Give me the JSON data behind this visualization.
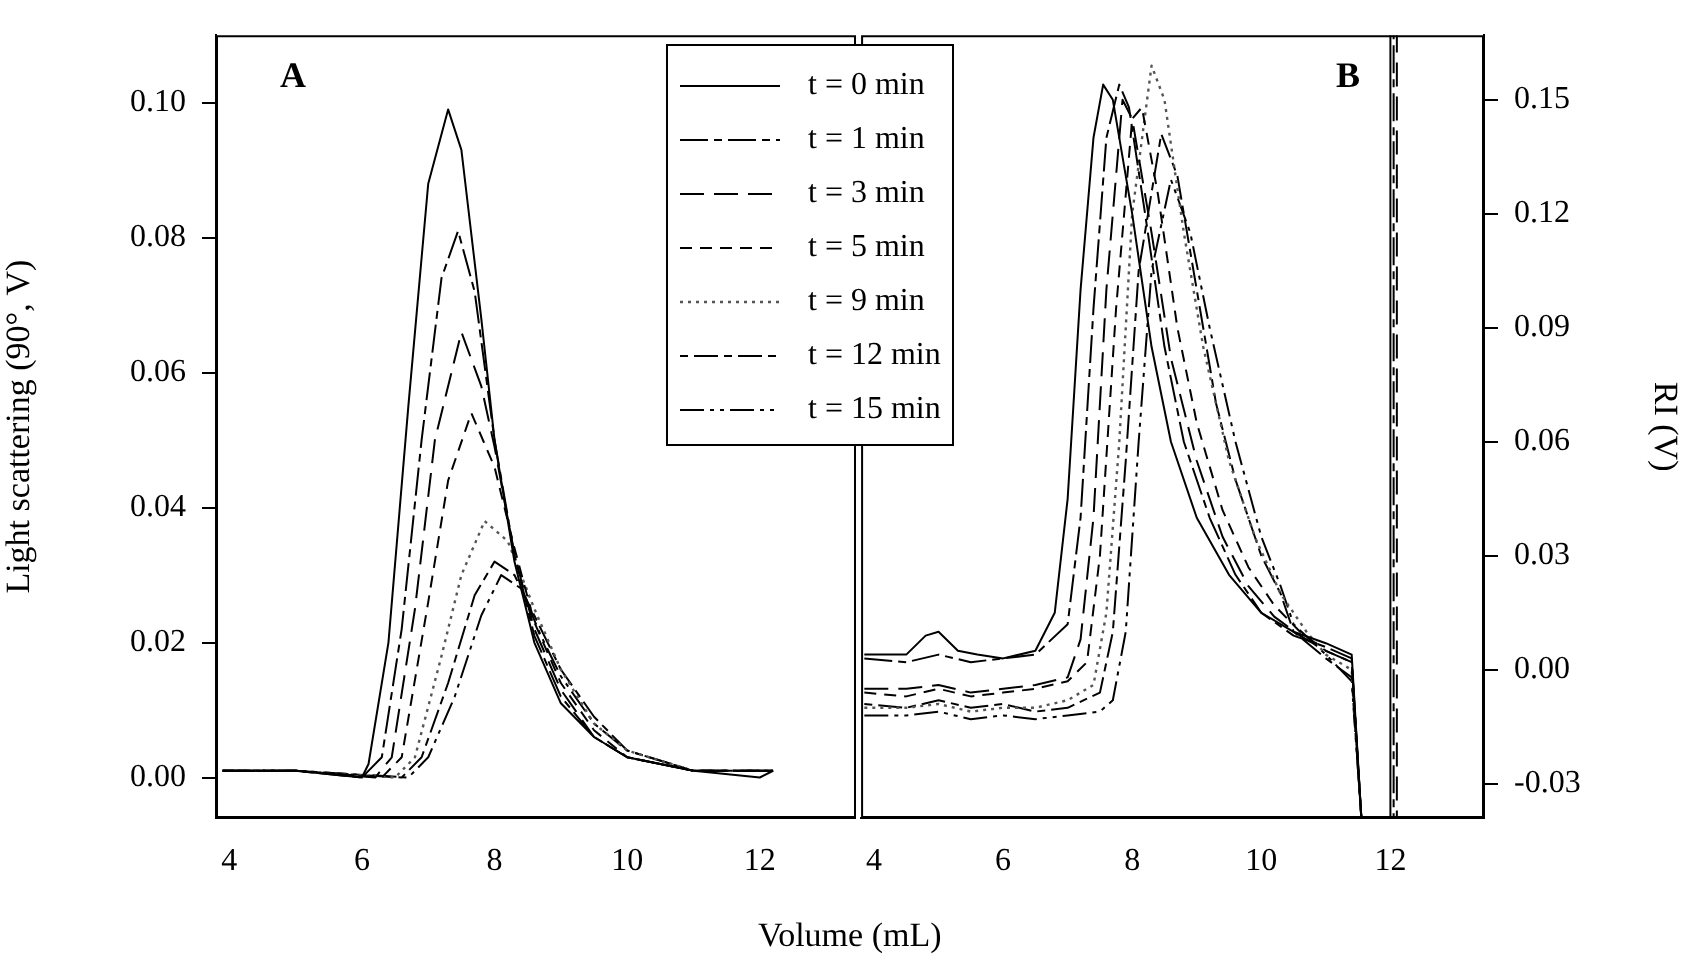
{
  "chart_data": [
    {
      "type": "line",
      "ylabel": "Light scattering (90°, V)",
      "xlabel": "Volume (mL)",
      "annotations": [
        "A"
      ],
      "legend": "top right",
      "xlim": [
        3.8,
        13.45
      ],
      "xticks": [
        4,
        6,
        8,
        10,
        12
      ],
      "ylim": [
        -0.006,
        0.11
      ],
      "yticks": [
        {
          "value": 0,
          "label": "0.00"
        },
        {
          "value": 0.02,
          "label": "0.02"
        },
        {
          "value": 0.04,
          "label": "0.04"
        },
        {
          "value": 0.06,
          "label": "0.06"
        },
        {
          "value": 0.08,
          "label": "0.08"
        },
        {
          "value": 0.1,
          "label": "0.10"
        }
      ],
      "series": [
        {
          "name": "t = 0 min",
          "color": "#000000",
          "line_style": "solid",
          "x": [
            3.9,
            5,
            6,
            6.1,
            6.4,
            6.7,
            7.0,
            7.3,
            7.5,
            7.8,
            8.0,
            8.3,
            8.6,
            9.0,
            9.5,
            10,
            11,
            12,
            12.2
          ],
          "values": [
            0.001,
            0.001,
            0.0,
            0.002,
            0.02,
            0.055,
            0.088,
            0.099,
            0.093,
            0.068,
            0.05,
            0.032,
            0.02,
            0.011,
            0.006,
            0.003,
            0.001,
            0.0,
            0.001
          ]
        },
        {
          "name": "t = 1 min",
          "color": "#000000",
          "line_style": "dashed",
          "x": [
            3.9,
            5,
            6,
            6.3,
            6.6,
            6.9,
            7.2,
            7.45,
            7.7,
            8.0,
            8.3,
            8.6,
            9.0,
            9.5,
            10,
            11,
            12.2
          ],
          "values": [
            0.001,
            0.001,
            0.0,
            0.003,
            0.022,
            0.05,
            0.074,
            0.081,
            0.072,
            0.05,
            0.033,
            0.021,
            0.012,
            0.006,
            0.003,
            0.001,
            0.001
          ]
        },
        {
          "name": "t = 3 min",
          "color": "#000000",
          "line_style": "dashed",
          "x": [
            3.9,
            5,
            6.2,
            6.45,
            6.8,
            7.1,
            7.5,
            7.8,
            8.0,
            8.3,
            8.6,
            9.0,
            9.5,
            10,
            11,
            12.2
          ],
          "values": [
            0.001,
            0.001,
            0.0,
            0.003,
            0.025,
            0.05,
            0.066,
            0.058,
            0.049,
            0.033,
            0.022,
            0.013,
            0.006,
            0.003,
            0.001,
            0.001
          ]
        },
        {
          "name": "t = 5 min",
          "color": "#000000",
          "line_style": "dashed",
          "x": [
            3.9,
            5,
            6.3,
            6.6,
            7.0,
            7.3,
            7.65,
            8.0,
            8.3,
            8.6,
            9.0,
            9.5,
            10,
            11,
            12.2
          ],
          "values": [
            0.001,
            0.001,
            0.0,
            0.003,
            0.026,
            0.044,
            0.054,
            0.046,
            0.034,
            0.023,
            0.014,
            0.007,
            0.003,
            0.001,
            0.001
          ]
        },
        {
          "name": "t = 9 min",
          "color": "#555555",
          "line_style": "dotted",
          "x": [
            3.9,
            5,
            6.5,
            6.8,
            7.2,
            7.5,
            7.85,
            8.2,
            8.6,
            9.0,
            9.5,
            10,
            11,
            12.2
          ],
          "values": [
            0.001,
            0.001,
            0.0,
            0.003,
            0.018,
            0.03,
            0.038,
            0.035,
            0.025,
            0.016,
            0.008,
            0.004,
            0.001,
            0.001
          ]
        },
        {
          "name": "t = 12 min",
          "color": "#000000",
          "line_style": "dashed",
          "x": [
            3.9,
            5,
            6.6,
            6.9,
            7.3,
            7.7,
            8.0,
            8.3,
            8.6,
            9.0,
            9.5,
            10,
            11,
            12.2
          ],
          "values": [
            0.001,
            0.001,
            0.0,
            0.003,
            0.014,
            0.027,
            0.032,
            0.03,
            0.024,
            0.016,
            0.009,
            0.004,
            0.001,
            0.001
          ]
        },
        {
          "name": "t = 15 min",
          "color": "#000000",
          "line_style": "dashed",
          "x": [
            3.9,
            5,
            6.7,
            7.0,
            7.4,
            7.8,
            8.1,
            8.4,
            8.7,
            9.0,
            9.5,
            10,
            11,
            12.2
          ],
          "values": [
            0.001,
            0.001,
            0.0,
            0.003,
            0.012,
            0.024,
            0.03,
            0.028,
            0.021,
            0.015,
            0.008,
            0.004,
            0.001,
            0.001
          ]
        }
      ]
    },
    {
      "type": "line",
      "y2label": "RI (V)",
      "annotations": [
        "B"
      ],
      "xlim": [
        3.8,
        13.45
      ],
      "xticks": [
        4,
        6,
        8,
        10,
        12
      ],
      "y2lim": [
        -0.039,
        0.167
      ],
      "y2ticks": [
        {
          "value": -0.03,
          "label": "-0.03"
        },
        {
          "value": 0,
          "label": "0.00"
        },
        {
          "value": 0.03,
          "label": "0.03"
        },
        {
          "value": 0.06,
          "label": "0.06"
        },
        {
          "value": 0.09,
          "label": "0.09"
        },
        {
          "value": 0.12,
          "label": "0.12"
        },
        {
          "value": 0.15,
          "label": "0.15"
        }
      ],
      "series": [
        {
          "color": "#000000",
          "axis": "y2",
          "line_style": "solid",
          "x": [
            3.85,
            4.5,
            4.8,
            5.0,
            5.3,
            5.6,
            6.0,
            6.5,
            6.8,
            7.0,
            7.2,
            7.4,
            7.55,
            7.7,
            8.0,
            8.3,
            8.6,
            9.0,
            9.5,
            10.0,
            10.5,
            11.0,
            11.4,
            11.55,
            12.0,
            12.0
          ],
          "values": [
            0.004,
            0.004,
            0.009,
            0.01,
            0.005,
            0.004,
            0.003,
            0.005,
            0.015,
            0.045,
            0.1,
            0.14,
            0.154,
            0.15,
            0.12,
            0.085,
            0.06,
            0.04,
            0.025,
            0.015,
            0.01,
            0.007,
            0.004,
            -0.039,
            -0.039,
            0.167
          ]
        },
        {
          "color": "#000000",
          "axis": "y2",
          "line_style": "dashed",
          "x": [
            3.85,
            4.5,
            5.0,
            5.5,
            6.0,
            6.5,
            7.0,
            7.2,
            7.4,
            7.6,
            7.8,
            7.95,
            8.2,
            8.5,
            8.8,
            9.2,
            9.6,
            10.0,
            10.5,
            11.0,
            11.4,
            11.55,
            12.05,
            12.05
          ],
          "values": [
            0.003,
            0.002,
            0.004,
            0.002,
            0.003,
            0.004,
            0.012,
            0.04,
            0.095,
            0.14,
            0.154,
            0.148,
            0.12,
            0.085,
            0.06,
            0.04,
            0.025,
            0.015,
            0.009,
            0.006,
            0.003,
            -0.039,
            -0.039,
            0.167
          ]
        },
        {
          "color": "#000000",
          "axis": "y2",
          "line_style": "dashed",
          "x": [
            3.85,
            4.5,
            5.0,
            5.5,
            6.0,
            6.5,
            7.0,
            7.2,
            7.4,
            7.6,
            7.85,
            8.0,
            8.3,
            8.6,
            9.0,
            9.4,
            9.8,
            10.2,
            10.6,
            11.0,
            11.4,
            11.55,
            12.1,
            12.1
          ],
          "values": [
            -0.005,
            -0.005,
            -0.004,
            -0.006,
            -0.005,
            -0.004,
            -0.002,
            0.008,
            0.04,
            0.1,
            0.15,
            0.145,
            0.115,
            0.082,
            0.055,
            0.035,
            0.022,
            0.014,
            0.009,
            0.005,
            0.002,
            -0.039,
            -0.039,
            0.167
          ]
        },
        {
          "color": "#000000",
          "axis": "y2",
          "line_style": "dashed",
          "x": [
            3.85,
            4.5,
            5,
            5.5,
            6,
            6.5,
            7.0,
            7.3,
            7.5,
            7.75,
            8.0,
            8.15,
            8.4,
            8.7,
            9.0,
            9.4,
            9.8,
            10.2,
            10.6,
            11.0,
            11.4,
            11.55
          ],
          "values": [
            -0.006,
            -0.007,
            -0.005,
            -0.007,
            -0.006,
            -0.005,
            -0.003,
            0.002,
            0.03,
            0.095,
            0.145,
            0.148,
            0.125,
            0.09,
            0.065,
            0.042,
            0.027,
            0.017,
            0.01,
            0.005,
            0.002,
            -0.039
          ]
        },
        {
          "color": "#555555",
          "axis": "y2",
          "line_style": "dotted",
          "x": [
            3.85,
            4.5,
            5,
            5.5,
            6,
            6.5,
            7.0,
            7.4,
            7.6,
            7.8,
            8.0,
            8.3,
            8.5,
            8.8,
            9.1,
            9.5,
            9.9,
            10.3,
            10.7,
            11.0,
            11.4,
            11.55
          ],
          "values": [
            -0.01,
            -0.01,
            -0.009,
            -0.011,
            -0.01,
            -0.01,
            -0.008,
            -0.004,
            0.015,
            0.06,
            0.12,
            0.159,
            0.15,
            0.115,
            0.085,
            0.055,
            0.035,
            0.02,
            0.01,
            0.004,
            0.0,
            -0.039
          ]
        },
        {
          "color": "#000000",
          "axis": "y2",
          "line_style": "dashed",
          "x": [
            3.85,
            4.5,
            5,
            5.5,
            6,
            6.5,
            7.0,
            7.5,
            7.7,
            7.9,
            8.1,
            8.45,
            8.7,
            9.0,
            9.3,
            9.6,
            10.0,
            10.3,
            10.5,
            11.0,
            11.4,
            11.55
          ],
          "values": [
            -0.009,
            -0.01,
            -0.008,
            -0.01,
            -0.009,
            -0.011,
            -0.01,
            -0.006,
            0.01,
            0.055,
            0.105,
            0.141,
            0.13,
            0.1,
            0.07,
            0.05,
            0.03,
            0.02,
            0.01,
            0.003,
            -0.002,
            -0.039
          ]
        },
        {
          "color": "#000000",
          "axis": "y2",
          "line_style": "dashed",
          "x": [
            3.85,
            4.5,
            5,
            5.5,
            6,
            6.5,
            7.0,
            7.5,
            7.7,
            7.9,
            8.1,
            8.3,
            8.6,
            8.9,
            9.2,
            9.6,
            10.0,
            10.3,
            10.5,
            11.0,
            11.4,
            11.55
          ],
          "values": [
            -0.012,
            -0.012,
            -0.011,
            -0.013,
            -0.012,
            -0.013,
            -0.012,
            -0.011,
            -0.008,
            0.01,
            0.06,
            0.105,
            0.129,
            0.115,
            0.09,
            0.06,
            0.035,
            0.022,
            0.012,
            0.004,
            -0.003,
            -0.039
          ]
        }
      ]
    }
  ]
}
